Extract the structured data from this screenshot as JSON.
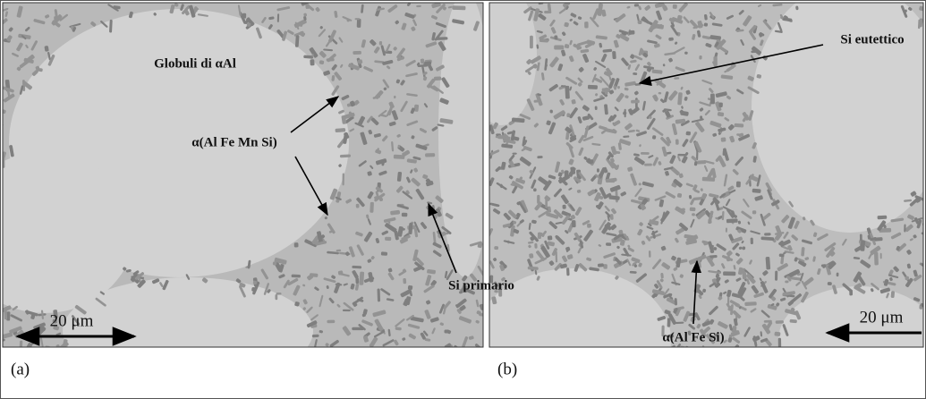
{
  "panels": [
    {
      "label": "(a)",
      "annotations": [
        "Globuli di αAl",
        "α(Al Fe Mn Si)",
        "Si primario"
      ],
      "scale_bar": "20 μm"
    },
    {
      "label": "(b)",
      "annotations": [
        "Si eutettico",
        "α(Al Fe Si)"
      ],
      "scale_bar": "20 μm"
    }
  ]
}
